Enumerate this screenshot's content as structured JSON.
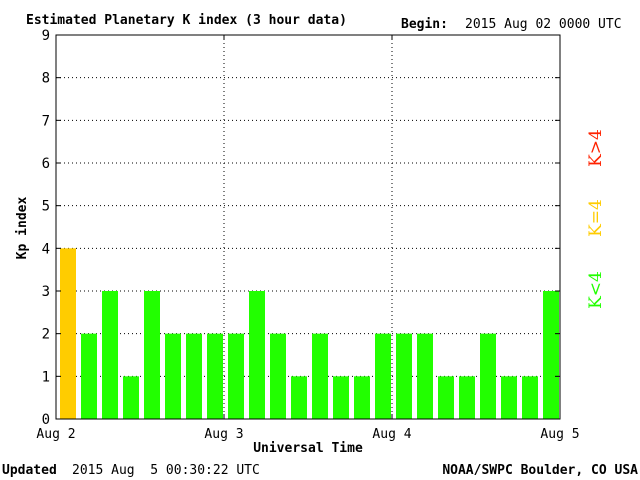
{
  "header": {
    "title": "Estimated Planetary K index (3 hour data)",
    "begin_label": "Begin:",
    "begin_value": "2015 Aug 02 0000 UTC"
  },
  "footer": {
    "updated_label": "Updated",
    "updated_value": "2015 Aug  5 00:30:22 UTC",
    "source": "NOAA/SWPC Boulder, CO USA"
  },
  "legend": {
    "high": {
      "label": "K>4",
      "color": "#ff2200"
    },
    "mid": {
      "label": "K=4",
      "color": "#ffcc00"
    },
    "low": {
      "label": "K<4",
      "color": "#22ff00"
    }
  },
  "chart_data": {
    "type": "bar",
    "xlabel": "Universal Time",
    "ylabel": "Kp index",
    "ylim": [
      0,
      9
    ],
    "yticks": [
      "0",
      "1",
      "2",
      "3",
      "4",
      "5",
      "6",
      "7",
      "8",
      "9"
    ],
    "xticks": [
      "Aug 2",
      "Aug 3",
      "Aug 4",
      "Aug 5"
    ],
    "grid": true,
    "values": [
      4,
      2,
      3,
      1,
      3,
      2,
      2,
      2,
      2,
      3,
      2,
      1,
      2,
      1,
      1,
      2,
      2,
      2,
      1,
      1,
      2,
      1,
      1,
      3
    ]
  }
}
